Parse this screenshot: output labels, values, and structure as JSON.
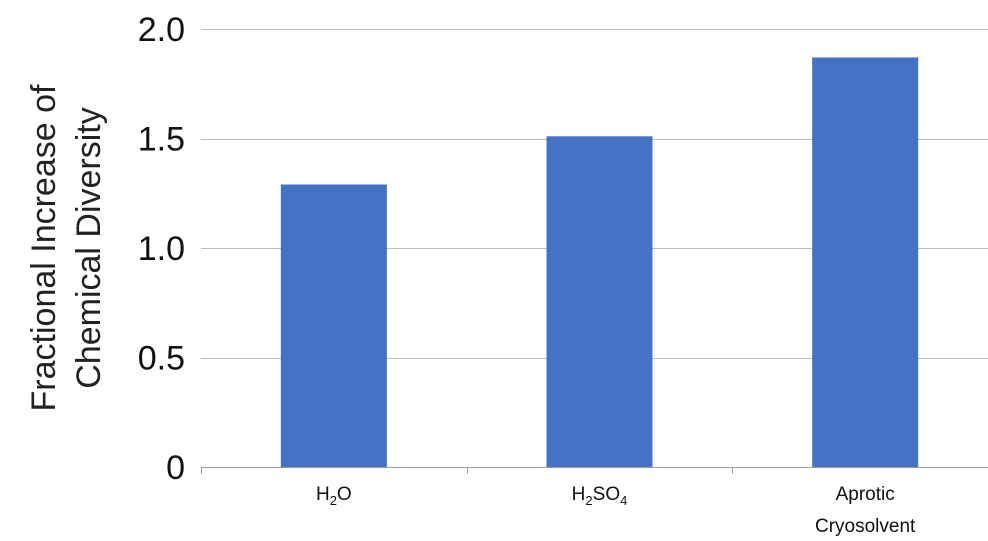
{
  "chart_data": {
    "type": "bar",
    "title": "",
    "ylabel_lines": [
      "Fractional Increase of",
      "Chemical Diversity"
    ],
    "xlabel": "",
    "categories": [
      {
        "lines": [
          [
            {
              "t": "H"
            },
            {
              "t": "2",
              "sub": true
            },
            {
              "t": "O"
            }
          ]
        ]
      },
      {
        "lines": [
          [
            {
              "t": "H"
            },
            {
              "t": "2",
              "sub": true
            },
            {
              "t": "SO"
            },
            {
              "t": "4",
              "sub": true
            }
          ]
        ]
      },
      {
        "lines": [
          [
            {
              "t": "Aprotic"
            }
          ],
          [
            {
              "t": "Cryosolvent"
            }
          ]
        ]
      }
    ],
    "values": [
      1.29,
      1.51,
      1.87
    ],
    "ylim": [
      0,
      2.0
    ],
    "yticks": [
      0,
      0.5,
      1.0,
      1.5,
      2.0
    ],
    "ytick_labels": [
      "0",
      "0.5",
      "1.0",
      "1.5",
      "2.0"
    ],
    "grid": true,
    "legend": false,
    "bar_color": "#4472c4"
  }
}
